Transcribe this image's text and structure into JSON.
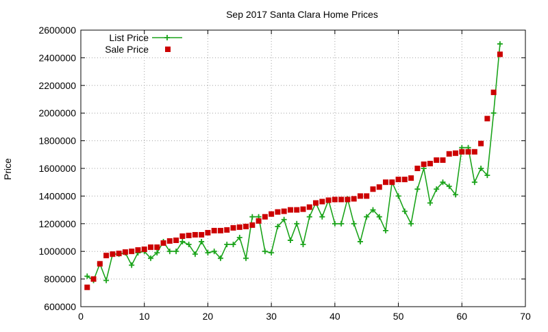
{
  "chart_data": {
    "type": "line",
    "title": "Sep 2017 Santa Clara Home Prices",
    "xlabel": "",
    "ylabel": "Price",
    "xlim": [
      0,
      70
    ],
    "ylim": [
      600000,
      2600000
    ],
    "x_ticks": [
      0,
      10,
      20,
      30,
      40,
      50,
      60,
      70
    ],
    "y_ticks": [
      600000,
      800000,
      1000000,
      1200000,
      1400000,
      1600000,
      1800000,
      2000000,
      2200000,
      2400000,
      2600000
    ],
    "x_tick_labels": [
      "0",
      "10",
      "20",
      "30",
      "40",
      "50",
      "60",
      "70"
    ],
    "y_tick_labels": [
      "600000",
      "800000",
      "1000000",
      "1200000",
      "1400000",
      "1600000",
      "1800000",
      "2000000",
      "2200000",
      "2400000",
      "2600000"
    ],
    "grid": true,
    "legend_position": "top-left",
    "series": [
      {
        "name": "List Price",
        "style": "line-with-plus-markers",
        "color": "#1aa31a",
        "x": [
          1,
          2,
          3,
          4,
          5,
          6,
          7,
          8,
          9,
          10,
          11,
          12,
          13,
          14,
          15,
          16,
          17,
          18,
          19,
          20,
          21,
          22,
          23,
          24,
          25,
          26,
          27,
          28,
          29,
          30,
          31,
          32,
          33,
          34,
          35,
          36,
          37,
          38,
          39,
          40,
          41,
          42,
          43,
          44,
          45,
          46,
          47,
          48,
          49,
          50,
          51,
          52,
          53,
          54,
          55,
          56,
          57,
          58,
          59,
          60,
          61,
          62,
          63,
          64,
          65,
          66
        ],
        "values": [
          820000,
          790000,
          910000,
          790000,
          980000,
          980000,
          990000,
          900000,
          990000,
          1000000,
          950000,
          990000,
          1070000,
          1000000,
          1000000,
          1070000,
          1050000,
          980000,
          1070000,
          990000,
          1000000,
          950000,
          1050000,
          1050000,
          1100000,
          950000,
          1250000,
          1250000,
          1000000,
          990000,
          1180000,
          1230000,
          1080000,
          1200000,
          1050000,
          1250000,
          1350000,
          1250000,
          1370000,
          1200000,
          1200000,
          1380000,
          1200000,
          1070000,
          1250000,
          1300000,
          1250000,
          1150000,
          1500000,
          1400000,
          1290000,
          1200000,
          1450000,
          1600000,
          1350000,
          1450000,
          1500000,
          1470000,
          1410000,
          1750000,
          1750000,
          1500000,
          1600000,
          1550000,
          2000000,
          2500000
        ]
      },
      {
        "name": "Sale Price",
        "style": "square-markers",
        "color": "#cc0000",
        "x": [
          1,
          2,
          3,
          4,
          5,
          6,
          7,
          8,
          9,
          10,
          11,
          12,
          13,
          14,
          15,
          16,
          17,
          18,
          19,
          20,
          21,
          22,
          23,
          24,
          25,
          26,
          27,
          28,
          29,
          30,
          31,
          32,
          33,
          34,
          35,
          36,
          37,
          38,
          39,
          40,
          41,
          42,
          43,
          44,
          45,
          46,
          47,
          48,
          49,
          50,
          51,
          52,
          53,
          54,
          55,
          56,
          57,
          58,
          59,
          60,
          61,
          62,
          63,
          64,
          65,
          66
        ],
        "values": [
          740000,
          800000,
          910000,
          970000,
          980000,
          985000,
          995000,
          1000000,
          1010000,
          1015000,
          1030000,
          1030000,
          1060000,
          1075000,
          1080000,
          1110000,
          1115000,
          1120000,
          1120000,
          1135000,
          1150000,
          1150000,
          1155000,
          1170000,
          1175000,
          1180000,
          1190000,
          1220000,
          1250000,
          1270000,
          1285000,
          1290000,
          1300000,
          1300000,
          1305000,
          1320000,
          1350000,
          1360000,
          1370000,
          1375000,
          1375000,
          1375000,
          1380000,
          1400000,
          1400000,
          1450000,
          1465000,
          1500000,
          1500000,
          1520000,
          1520000,
          1530000,
          1600000,
          1630000,
          1635000,
          1660000,
          1660000,
          1705000,
          1710000,
          1720000,
          1720000,
          1720000,
          1780000,
          1960000,
          2150000,
          2425000
        ]
      }
    ]
  }
}
